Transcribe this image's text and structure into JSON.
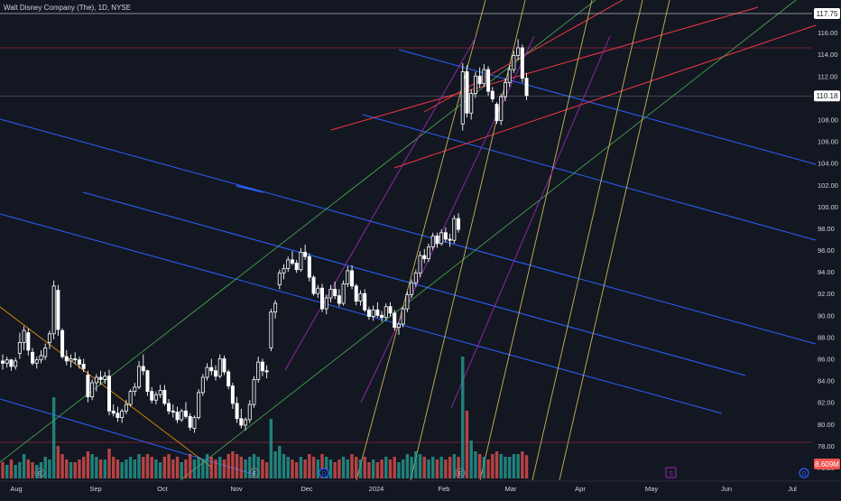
{
  "header": {
    "title": "Walt Disney Company (The), 1D, NYSE"
  },
  "price_axis": {
    "ticks": [
      "76.00",
      "78.00",
      "80.00",
      "82.00",
      "84.00",
      "86.00",
      "88.00",
      "90.00",
      "92.00",
      "94.00",
      "96.00",
      "98.00",
      "100.00",
      "102.00",
      "104.00",
      "106.00",
      "108.00",
      "110.00",
      "112.00",
      "114.00",
      "116.00"
    ],
    "high_label": "117.75",
    "last_label": "110.18",
    "volume_label": "8.609M"
  },
  "time_axis": {
    "labels": [
      "Aug",
      "Sep",
      "Oct",
      "Nov",
      "Dec",
      "2024",
      "Feb",
      "Mar",
      "Apr",
      "May",
      "Jun",
      "Jul"
    ]
  },
  "markers": {
    "earnings": "E",
    "dividend": "D",
    "split": "S"
  },
  "colors": {
    "background": "#131722",
    "up": "#ffffff",
    "down": "#ffffff",
    "volume_up": "#26a69a",
    "volume_down": "#ef5350",
    "blue_line": "#2962ff",
    "red_line": "#f23645",
    "green_line": "#4caf50",
    "yellow_line": "#c9b458",
    "purple_line": "#9c27b0",
    "orange_line": "#ff9800"
  },
  "chart_data": {
    "type": "candlestick",
    "title": "Walt Disney Company (The), 1D, NYSE",
    "ylim": [
      75,
      118.5
    ],
    "ohlc": [
      [
        85.8,
        86.4,
        85.0,
        85.6
      ],
      [
        85.6,
        86.2,
        85.2,
        85.9
      ],
      [
        85.9,
        86.0,
        84.9,
        85.3
      ],
      [
        85.3,
        86.1,
        85.0,
        85.8
      ],
      [
        86.5,
        88.4,
        86.0,
        87.5
      ],
      [
        87.5,
        89.0,
        86.8,
        88.6
      ],
      [
        88.4,
        88.8,
        86.3,
        86.8
      ],
      [
        86.6,
        87.0,
        85.4,
        85.6
      ],
      [
        85.6,
        86.2,
        85.1,
        85.9
      ],
      [
        85.9,
        86.8,
        85.6,
        86.3
      ],
      [
        86.2,
        87.4,
        85.9,
        87.0
      ],
      [
        87.5,
        88.6,
        86.9,
        88.3
      ],
      [
        88.3,
        93.2,
        87.8,
        92.7
      ],
      [
        92.3,
        92.8,
        88.1,
        88.7
      ],
      [
        88.6,
        88.8,
        86.0,
        86.2
      ],
      [
        86.2,
        86.8,
        85.4,
        85.8
      ],
      [
        85.8,
        86.4,
        85.2,
        86.0
      ],
      [
        86.0,
        86.6,
        85.5,
        85.9
      ],
      [
        85.9,
        86.2,
        85.1,
        85.5
      ],
      [
        85.5,
        86.0,
        84.8,
        85.1
      ],
      [
        84.5,
        84.9,
        82.0,
        82.5
      ],
      [
        82.5,
        84.1,
        82.2,
        83.8
      ],
      [
        83.8,
        84.6,
        83.0,
        84.3
      ],
      [
        84.3,
        84.9,
        83.6,
        84.1
      ],
      [
        84.1,
        84.8,
        83.7,
        84.4
      ],
      [
        84.4,
        85.0,
        80.8,
        81.2
      ],
      [
        81.2,
        81.8,
        80.7,
        81.0
      ],
      [
        81.0,
        81.6,
        80.2,
        80.6
      ],
      [
        80.6,
        81.4,
        80.1,
        81.2
      ],
      [
        81.2,
        82.2,
        80.9,
        81.8
      ],
      [
        81.8,
        83.2,
        81.6,
        83.0
      ],
      [
        83.0,
        83.8,
        82.6,
        83.4
      ],
      [
        83.4,
        85.8,
        83.2,
        85.3
      ],
      [
        85.3,
        86.4,
        84.5,
        84.9
      ],
      [
        84.9,
        85.0,
        82.6,
        83.0
      ],
      [
        83.0,
        83.4,
        81.9,
        82.2
      ],
      [
        82.2,
        83.0,
        81.8,
        82.7
      ],
      [
        82.7,
        83.6,
        82.4,
        83.1
      ],
      [
        83.1,
        83.6,
        81.7,
        81.9
      ],
      [
        81.9,
        82.3,
        80.9,
        81.2
      ],
      [
        81.2,
        81.8,
        80.6,
        81.1
      ],
      [
        81.1,
        81.6,
        80.1,
        80.4
      ],
      [
        80.4,
        81.4,
        80.2,
        81.2
      ],
      [
        81.2,
        82.0,
        80.5,
        80.7
      ],
      [
        80.7,
        81.0,
        79.4,
        79.7
      ],
      [
        79.6,
        80.8,
        79.2,
        80.6
      ],
      [
        80.6,
        83.2,
        80.4,
        82.9
      ],
      [
        82.9,
        84.6,
        82.6,
        84.3
      ],
      [
        84.3,
        85.6,
        84.0,
        85.2
      ],
      [
        85.2,
        86.0,
        84.5,
        84.9
      ],
      [
        84.9,
        85.4,
        84.0,
        84.4
      ],
      [
        84.4,
        86.4,
        84.2,
        86.0
      ],
      [
        86.0,
        86.3,
        84.5,
        84.8
      ],
      [
        84.8,
        85.0,
        83.2,
        83.5
      ],
      [
        83.5,
        83.8,
        81.4,
        81.9
      ],
      [
        81.9,
        82.5,
        80.1,
        80.5
      ],
      [
        80.5,
        81.4,
        79.6,
        79.9
      ],
      [
        79.9,
        80.6,
        79.4,
        80.4
      ],
      [
        80.4,
        82.2,
        80.1,
        81.8
      ],
      [
        81.8,
        84.4,
        81.5,
        84.1
      ],
      [
        84.1,
        86.2,
        83.8,
        85.7
      ],
      [
        85.7,
        86.0,
        84.4,
        84.9
      ],
      [
        84.9,
        85.4,
        84.2,
        84.8
      ],
      [
        87.0,
        90.6,
        86.7,
        90.3
      ],
      [
        90.3,
        91.4,
        89.7,
        91.1
      ],
      [
        92.8,
        94.2,
        92.4,
        93.9
      ],
      [
        93.9,
        94.7,
        93.3,
        94.3
      ],
      [
        94.3,
        95.4,
        94.0,
        95.1
      ],
      [
        95.1,
        95.9,
        94.6,
        94.8
      ],
      [
        94.8,
        95.1,
        93.9,
        94.2
      ],
      [
        94.2,
        96.2,
        94.0,
        95.8
      ],
      [
        95.8,
        96.5,
        95.1,
        95.4
      ],
      [
        95.4,
        95.7,
        93.1,
        93.5
      ],
      [
        93.5,
        93.7,
        91.8,
        92.0
      ],
      [
        92.0,
        92.8,
        91.6,
        92.5
      ],
      [
        92.5,
        92.9,
        90.3,
        90.6
      ],
      [
        90.6,
        91.9,
        90.1,
        91.6
      ],
      [
        91.6,
        92.8,
        91.2,
        92.4
      ],
      [
        92.4,
        93.1,
        91.5,
        91.8
      ],
      [
        91.8,
        92.4,
        90.8,
        91.1
      ],
      [
        91.1,
        93.2,
        90.9,
        92.9
      ],
      [
        92.9,
        94.5,
        92.6,
        94.1
      ],
      [
        94.1,
        94.6,
        92.4,
        92.7
      ],
      [
        92.7,
        92.9,
        90.9,
        91.3
      ],
      [
        91.3,
        92.3,
        90.9,
        92.0
      ],
      [
        92.0,
        92.4,
        90.3,
        90.5
      ],
      [
        90.5,
        90.8,
        89.6,
        89.9
      ],
      [
        89.9,
        90.9,
        89.5,
        90.5
      ],
      [
        90.5,
        91.2,
        89.8,
        90.0
      ],
      [
        90.0,
        90.4,
        89.4,
        89.8
      ],
      [
        89.8,
        91.1,
        89.5,
        90.8
      ],
      [
        90.8,
        91.2,
        89.9,
        90.2
      ],
      [
        90.2,
        90.5,
        88.6,
        88.9
      ],
      [
        88.9,
        89.4,
        88.2,
        89.2
      ],
      [
        89.2,
        90.8,
        88.9,
        90.6
      ],
      [
        90.6,
        92.2,
        90.3,
        91.9
      ],
      [
        91.9,
        93.3,
        91.6,
        93.0
      ],
      [
        93.0,
        94.2,
        92.6,
        93.9
      ],
      [
        93.9,
        95.9,
        93.5,
        95.5
      ],
      [
        95.5,
        96.1,
        94.8,
        95.2
      ],
      [
        95.2,
        96.6,
        94.9,
        96.3
      ],
      [
        96.3,
        97.6,
        96.0,
        97.3
      ],
      [
        97.3,
        97.6,
        96.2,
        96.6
      ],
      [
        96.6,
        97.9,
        96.4,
        97.6
      ],
      [
        97.6,
        98.1,
        96.7,
        97.0
      ],
      [
        97.0,
        97.5,
        96.3,
        96.9
      ],
      [
        96.9,
        99.2,
        96.6,
        98.9
      ],
      [
        98.9,
        99.4,
        97.6,
        97.9
      ],
      [
        107.6,
        113.2,
        107.0,
        112.4
      ],
      [
        112.4,
        113.0,
        108.2,
        108.6
      ],
      [
        108.6,
        110.8,
        108.0,
        110.4
      ],
      [
        110.4,
        112.4,
        110.0,
        112.0
      ],
      [
        112.0,
        112.8,
        110.9,
        111.3
      ],
      [
        111.3,
        113.1,
        111.0,
        112.6
      ],
      [
        112.6,
        112.9,
        110.2,
        110.6
      ],
      [
        110.6,
        111.0,
        109.6,
        109.9
      ],
      [
        109.4,
        109.6,
        107.6,
        107.9
      ],
      [
        107.9,
        110.4,
        107.5,
        110.1
      ],
      [
        110.1,
        111.8,
        109.7,
        111.4
      ],
      [
        111.4,
        113.0,
        111.0,
        112.6
      ],
      [
        112.6,
        114.3,
        112.3,
        113.9
      ],
      [
        113.9,
        115.4,
        113.5,
        114.6
      ],
      [
        114.6,
        114.9,
        111.4,
        111.8
      ],
      [
        111.8,
        112.3,
        109.8,
        110.2
      ]
    ],
    "volume_millions": [
      6,
      5,
      7,
      5,
      6,
      9,
      7,
      6,
      5,
      6,
      8,
      7,
      30,
      12,
      9,
      7,
      6,
      6,
      7,
      8,
      10,
      9,
      8,
      7,
      7,
      11,
      8,
      7,
      6,
      7,
      8,
      7,
      9,
      8,
      9,
      8,
      7,
      6,
      8,
      9,
      7,
      8,
      6,
      7,
      9,
      7,
      8,
      7,
      9,
      8,
      7,
      8,
      7,
      9,
      10,
      9,
      8,
      7,
      8,
      9,
      8,
      7,
      6,
      22,
      10,
      12,
      9,
      8,
      7,
      6,
      8,
      7,
      9,
      8,
      7,
      9,
      8,
      7,
      6,
      7,
      8,
      7,
      9,
      8,
      7,
      8,
      6,
      7,
      6,
      7,
      8,
      7,
      8,
      6,
      7,
      9,
      8,
      10,
      9,
      8,
      7,
      8,
      7,
      8,
      7,
      8,
      9,
      8,
      45,
      25,
      14,
      10,
      9,
      8,
      7,
      9,
      10,
      9,
      8,
      8,
      9,
      9,
      10,
      8.609
    ],
    "last_price": 110.18,
    "high_line": 117.75,
    "x_labels": [
      "Aug",
      "Sep",
      "Oct",
      "Nov",
      "Dec",
      "2024",
      "Feb",
      "Mar",
      "Apr",
      "May",
      "Jun",
      "Jul"
    ]
  }
}
